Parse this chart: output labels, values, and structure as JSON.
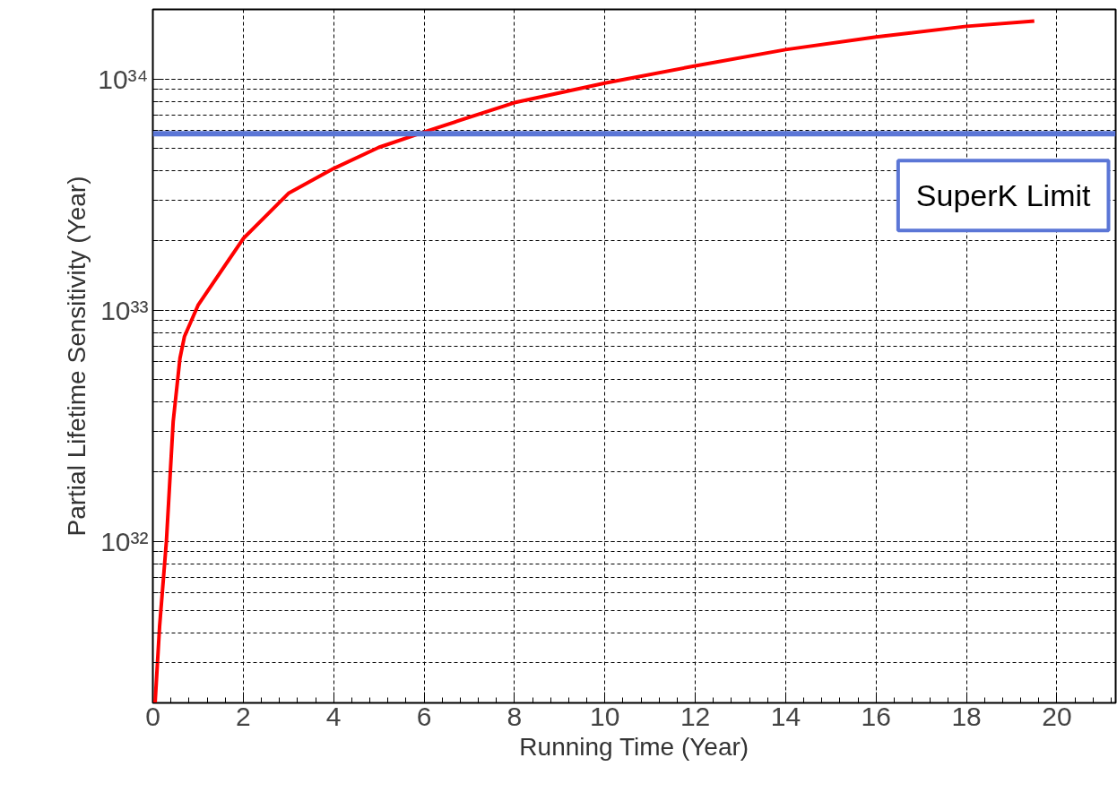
{
  "chart_data": {
    "type": "line",
    "xlabel": "Running Time (Year)",
    "ylabel": "Partial Lifetime Sensitivity (Year)",
    "log": "y",
    "grid": true,
    "line_style": "solid",
    "marker": "none",
    "xlim": [
      0,
      21.3
    ],
    "xticks": [
      0,
      2,
      4,
      6,
      8,
      10,
      12,
      14,
      16,
      18,
      20
    ],
    "ylim": [
      2e+31,
      2e+34
    ],
    "yticks": [
      {
        "value": 1e+32,
        "label": "10³²"
      },
      {
        "value": 1e+33,
        "label": "10³³"
      },
      {
        "value": 1e+34,
        "label": "10³⁴"
      }
    ],
    "series": [
      {
        "color": "#ff0000",
        "x": [
          0.05,
          0.15,
          0.3,
          0.45,
          0.6,
          0.7,
          1,
          2,
          3,
          4,
          5,
          6,
          8,
          10,
          12,
          14,
          16,
          18,
          19.5
        ],
        "values": [
          2e+31,
          4.3e+31,
          1e+32,
          3.3e+32,
          6.2e+32,
          7.7e+32,
          1.05e+33,
          2.04e+33,
          3.2e+33,
          4.1e+33,
          5.06e+33,
          5.9e+33,
          7.9e+33,
          9.6e+33,
          1.14e+34,
          1.34e+34,
          1.52e+34,
          1.69e+34,
          1.78e+34
        ]
      }
    ],
    "ref_lines": [
      {
        "axis": "y",
        "value": 5.8e+33,
        "label": "SuperK Limit",
        "color": "#5b76d6"
      }
    ]
  }
}
